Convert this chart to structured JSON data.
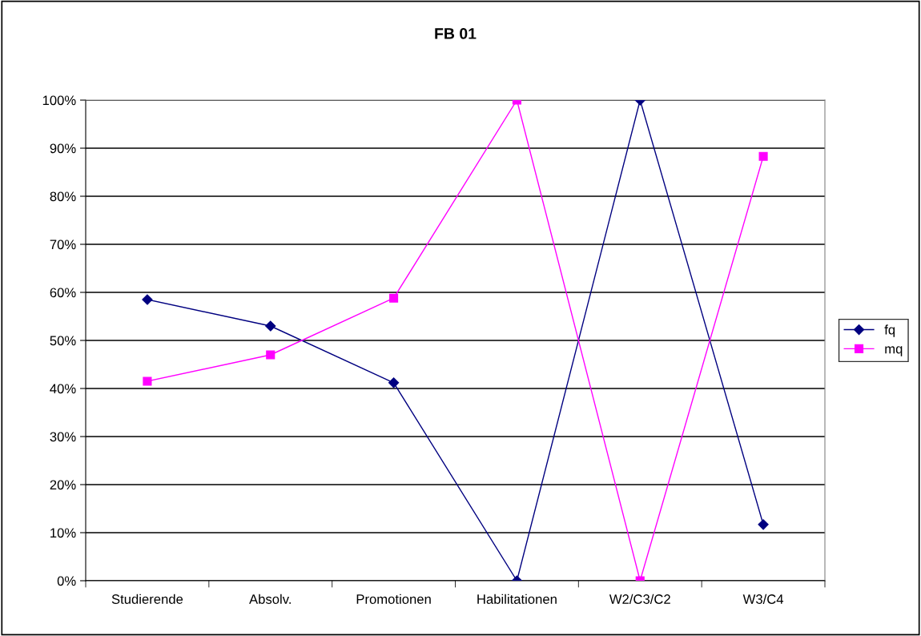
{
  "chart_data": {
    "type": "line",
    "title": "FB 01",
    "categories": [
      "Studierende",
      "Absolv.",
      "Promotionen",
      "Habilitationen",
      "W2/C3/C2",
      "W3/C4"
    ],
    "series": [
      {
        "name": "fq",
        "color": "#000080",
        "marker": "diamond",
        "values": [
          58.5,
          53,
          41.2,
          0,
          100,
          11.7
        ]
      },
      {
        "name": "mq",
        "color": "#ff00ff",
        "marker": "square",
        "values": [
          41.5,
          47,
          58.8,
          100,
          0,
          88.3
        ]
      }
    ],
    "ylim": [
      0,
      100
    ],
    "yticks": [
      {
        "value": 0,
        "label": "0%"
      },
      {
        "value": 10,
        "label": "10%"
      },
      {
        "value": 20,
        "label": "20%"
      },
      {
        "value": 30,
        "label": "30%"
      },
      {
        "value": 40,
        "label": "40%"
      },
      {
        "value": 50,
        "label": "50%"
      },
      {
        "value": 60,
        "label": "60%"
      },
      {
        "value": 70,
        "label": "70%"
      },
      {
        "value": 80,
        "label": "80%"
      },
      {
        "value": 90,
        "label": "90%"
      },
      {
        "value": 100,
        "label": "100%"
      }
    ],
    "grid": "y",
    "legend": "right",
    "line_style": "solid"
  }
}
